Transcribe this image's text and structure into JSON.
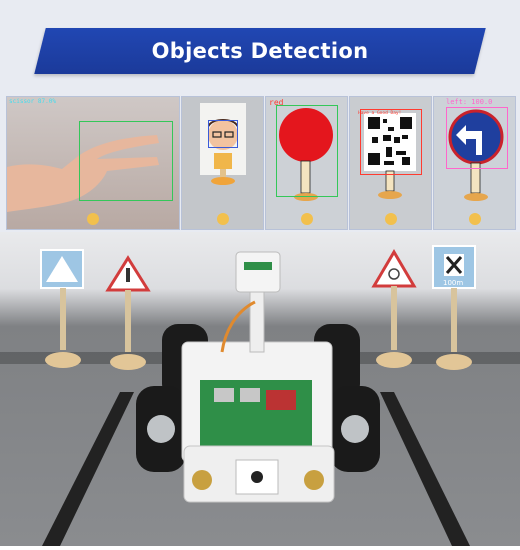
{
  "header": {
    "title": "Objects Detection"
  },
  "panels": [
    {
      "label": "scissor 87.0%"
    },
    {
      "label": ""
    },
    {
      "label": "red"
    },
    {
      "label": "Have a Good Day!"
    },
    {
      "label": "left: 100.0"
    }
  ],
  "scene": {
    "sign_distance": "100m"
  },
  "colors": {
    "banner": "#1b3a9a",
    "dot": "#f2c04d",
    "box_green": "#34c759",
    "box_red": "#ff3b30",
    "box_blue": "#3a5bd9"
  }
}
